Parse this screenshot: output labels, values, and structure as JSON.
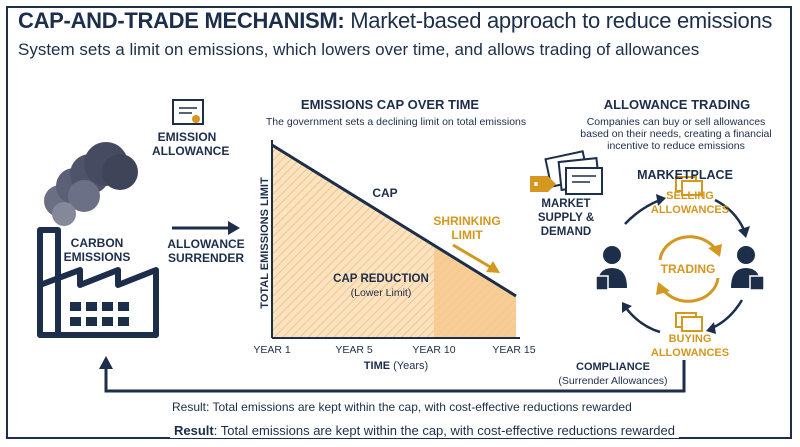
{
  "header": {
    "title_bold": "CAP-AND-TRADE MECHANISM:",
    "title_rest": " Market-based approach to reduce emissions",
    "subtitle": "System sets a limit on emissions, which lowers over time, and allows trading of allowances"
  },
  "left": {
    "carbon_line1": "CARBON",
    "carbon_line2": "EMISSIONS",
    "emission_allowance_line1": "EMISSION",
    "emission_allowance_line2": "ALLOWANCE",
    "surrender_line1": "ALLOWANCE",
    "surrender_line2": "SURRENDER"
  },
  "chart": {
    "title": "EMISSIONS CAP OVER TIME",
    "subtitle": "The government sets a declining limit on total emissions",
    "ylabel": "TOTAL EMISSIONS LIMIT",
    "xlabel_bold": "TIME",
    "xlabel_unit": "(Years)",
    "cap_label": "CAP",
    "shrinking_line1": "SHRINKING",
    "shrinking_line2": "LIMIT",
    "reduction_label": "CAP REDUCTION",
    "reduction_sub": "(Lower Limit)"
  },
  "chart_data": {
    "type": "line",
    "categories": [
      "YEAR 1",
      "YEAR 5",
      "YEAR 10",
      "YEAR 15"
    ],
    "series": [
      {
        "name": "CAP",
        "values": [
          100,
          74,
          41,
          9
        ]
      }
    ],
    "ylabel": "TOTAL EMISSIONS LIMIT",
    "xlabel": "TIME (Years)"
  },
  "trading": {
    "title": "ALLOWANCE TRADING",
    "desc_line1": "Companies can buy or sell allowances",
    "desc_line2": "based on their needs, creating a financial",
    "desc_line3": "incentive to reduce emissions",
    "market_supply_line1": "MARKET",
    "market_supply_line2": "SUPPLY &",
    "market_supply_line3": "DEMAND",
    "marketplace": "MARKETPLACE",
    "selling_line1": "SELLING",
    "selling_line2": "ALLOWANCES",
    "buying_line1": "BUYING",
    "buying_line2": "ALLOWANCES",
    "center": "TRADING",
    "compliance": "COMPLIANCE",
    "compliance_sub": "(Surrender Allowances)"
  },
  "footer": {
    "result_plain": "Result: Total emissions are kept within the cap, with cost-effective reductions rewarded",
    "result_bold": "Result",
    "result_rest": ": Total emissions are kept within the cap, with cost-effective reductions rewarded"
  },
  "colors": {
    "navy": "#1c2e4a",
    "gold": "#d4971f",
    "hatch_fill": "#fbe3c2",
    "smoke": "#4a4f66"
  }
}
